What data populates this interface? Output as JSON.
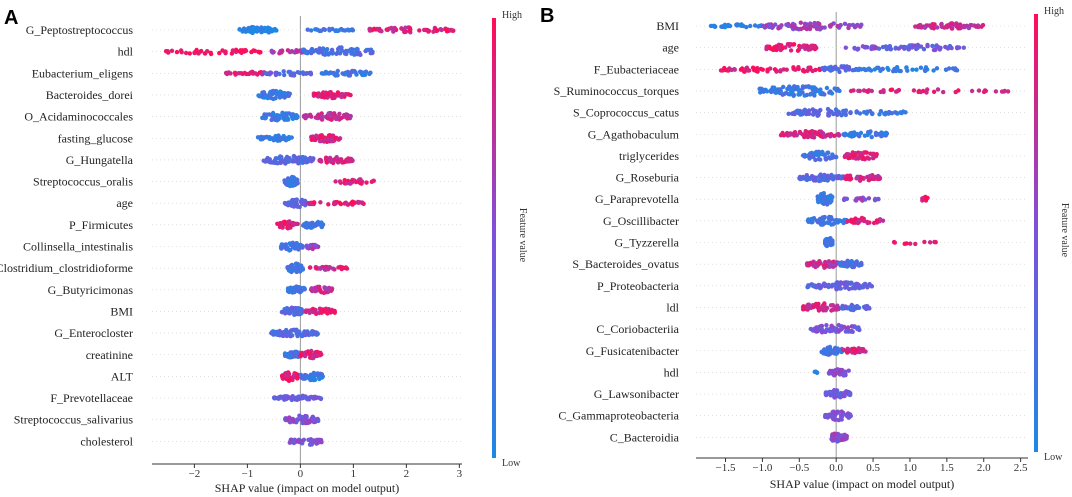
{
  "colors": {
    "low": "#1e88e5",
    "high": "#ff0d57",
    "zero_line": "#999999",
    "axis": "#333333"
  },
  "chart_data": [
    {
      "panel_label": "A",
      "type": "scatter",
      "title": "",
      "xlabel": "SHAP value (impact on model output)",
      "xlim": [
        -2.8,
        3.05
      ],
      "xticks": [
        -2,
        -1,
        0,
        1,
        2,
        3
      ],
      "colorbar": {
        "label": "Feature value",
        "high": "High",
        "low": "Low"
      },
      "features": [
        {
          "name": "G_Peptostreptococcus",
          "segments": [
            [
              -1.15,
              -0.45,
              0,
              70,
              0.4
            ],
            [
              0.1,
              1.0,
              0.15,
              25,
              0.15
            ],
            [
              1.3,
              2.9,
              0.85,
              60,
              0.35
            ]
          ]
        },
        {
          "name": "hdl",
          "segments": [
            [
              -2.55,
              -0.75,
              0.95,
              45,
              0.3
            ],
            [
              -0.6,
              0.1,
              0.7,
              25,
              0.25
            ],
            [
              0.05,
              1.45,
              0.25,
              70,
              0.55
            ]
          ]
        },
        {
          "name": "Eubacterium_eligens",
          "segments": [
            [
              -1.45,
              -0.55,
              0.85,
              35,
              0.2
            ],
            [
              -0.65,
              0.25,
              0.35,
              30,
              0.3
            ],
            [
              0.4,
              1.35,
              0.15,
              45,
              0.35
            ]
          ]
        },
        {
          "name": "Bacteroides_dorei",
          "segments": [
            [
              -0.8,
              -0.2,
              0.15,
              60,
              0.5
            ],
            [
              0.25,
              0.95,
              0.9,
              55,
              0.4
            ]
          ]
        },
        {
          "name": "O_Acidaminococcales",
          "segments": [
            [
              -0.75,
              -0.05,
              0.15,
              50,
              0.5
            ],
            [
              0.05,
              1.0,
              0.75,
              60,
              0.45
            ]
          ]
        },
        {
          "name": "fasting_glucose",
          "segments": [
            [
              -0.8,
              -0.15,
              0.15,
              45,
              0.35
            ],
            [
              0.2,
              0.75,
              0.85,
              60,
              0.45
            ]
          ]
        },
        {
          "name": "G_Hungatella",
          "segments": [
            [
              -0.7,
              0.25,
              0.3,
              90,
              0.5
            ],
            [
              0.3,
              1.0,
              0.85,
              50,
              0.4
            ]
          ]
        },
        {
          "name": "Streptococcus_oralis",
          "segments": [
            [
              -0.3,
              -0.05,
              0.2,
              45,
              0.6
            ],
            [
              0.65,
              1.4,
              0.9,
              30,
              0.3
            ]
          ]
        },
        {
          "name": "age",
          "segments": [
            [
              -0.3,
              0.15,
              0.35,
              40,
              0.5
            ],
            [
              0.15,
              1.25,
              0.9,
              35,
              0.25
            ]
          ]
        },
        {
          "name": "P_Firmicutes",
          "segments": [
            [
              -0.45,
              -0.05,
              0.9,
              40,
              0.45
            ],
            [
              0.05,
              0.45,
              0.15,
              40,
              0.5
            ]
          ]
        },
        {
          "name": "Collinsella_intestinalis",
          "segments": [
            [
              -0.4,
              0.05,
              0.2,
              50,
              0.5
            ],
            [
              0.1,
              0.35,
              0.6,
              20,
              0.3
            ]
          ]
        },
        {
          "name": "Clostridium_clostridioforme",
          "segments": [
            [
              -0.25,
              0.05,
              0.2,
              40,
              0.6
            ],
            [
              0.15,
              0.9,
              0.8,
              30,
              0.2
            ]
          ]
        },
        {
          "name": "G_Butyricimonas",
          "segments": [
            [
              -0.25,
              0.1,
              0.2,
              40,
              0.5
            ],
            [
              0.2,
              0.6,
              0.75,
              30,
              0.4
            ]
          ]
        },
        {
          "name": "BMI",
          "segments": [
            [
              -0.35,
              0.05,
              0.3,
              45,
              0.55
            ],
            [
              0.1,
              0.65,
              0.85,
              40,
              0.4
            ]
          ]
        },
        {
          "name": "G_Enterocloster",
          "segments": [
            [
              -0.55,
              0.35,
              0.3,
              80,
              0.45
            ]
          ]
        },
        {
          "name": "creatinine",
          "segments": [
            [
              -0.3,
              0.05,
              0.2,
              35,
              0.4
            ],
            [
              0.0,
              0.4,
              0.85,
              40,
              0.5
            ]
          ]
        },
        {
          "name": "ALT",
          "segments": [
            [
              -0.35,
              -0.05,
              0.9,
              45,
              0.6
            ],
            [
              0.0,
              0.45,
              0.15,
              40,
              0.5
            ]
          ]
        },
        {
          "name": "F_Prevotellaceae",
          "segments": [
            [
              -0.5,
              0.4,
              0.4,
              60,
              0.3
            ]
          ]
        },
        {
          "name": "Streptococcus_salivarius",
          "segments": [
            [
              -0.3,
              0.35,
              0.5,
              60,
              0.55
            ]
          ]
        },
        {
          "name": "cholesterol",
          "segments": [
            [
              -0.2,
              0.4,
              0.5,
              45,
              0.45
            ]
          ]
        }
      ]
    },
    {
      "panel_label": "B",
      "type": "scatter",
      "title": "",
      "xlabel": "SHAP value (impact on model output)",
      "xlim": [
        -1.9,
        2.6
      ],
      "xticks": [
        -1.5,
        -1.0,
        -0.5,
        0.0,
        0.5,
        1.0,
        1.5,
        2.0,
        2.5
      ],
      "colorbar": {
        "label": "Feature value",
        "high": "High",
        "low": "Low"
      },
      "features": [
        {
          "name": "BMI",
          "segments": [
            [
              -1.7,
              -1.0,
              0.05,
              30,
              0.2
            ],
            [
              -1.0,
              0.35,
              0.6,
              80,
              0.45
            ],
            [
              1.05,
              2.0,
              0.75,
              55,
              0.35
            ]
          ]
        },
        {
          "name": "age",
          "segments": [
            [
              -0.95,
              -0.25,
              0.9,
              60,
              0.45
            ],
            [
              0.1,
              0.55,
              0.55,
              20,
              0.25
            ],
            [
              0.55,
              1.75,
              0.4,
              55,
              0.35
            ]
          ]
        },
        {
          "name": "F_Eubacteriaceae",
          "segments": [
            [
              -1.6,
              -0.2,
              0.9,
              55,
              0.4
            ],
            [
              -0.2,
              0.3,
              0.3,
              40,
              0.4
            ],
            [
              0.3,
              1.7,
              0.1,
              45,
              0.3
            ]
          ]
        },
        {
          "name": "S_Ruminococcus_torques",
          "segments": [
            [
              -1.05,
              0.05,
              0.15,
              95,
              0.65
            ],
            [
              0.15,
              2.35,
              0.85,
              40,
              0.2
            ]
          ]
        },
        {
          "name": "S_Coprococcus_catus",
          "segments": [
            [
              -0.65,
              0.3,
              0.3,
              70,
              0.45
            ],
            [
              0.3,
              1.1,
              0.15,
              25,
              0.25
            ]
          ]
        },
        {
          "name": "G_Agathobaculum",
          "segments": [
            [
              -0.75,
              0.05,
              0.8,
              55,
              0.4
            ],
            [
              0.05,
              0.7,
              0.15,
              40,
              0.4
            ]
          ]
        },
        {
          "name": "triglycerides",
          "segments": [
            [
              -0.45,
              0.0,
              0.2,
              45,
              0.55
            ],
            [
              0.1,
              0.55,
              0.85,
              45,
              0.5
            ]
          ]
        },
        {
          "name": "G_Roseburia",
          "segments": [
            [
              -0.5,
              0.1,
              0.3,
              55,
              0.45
            ],
            [
              0.1,
              0.6,
              0.8,
              40,
              0.4
            ]
          ]
        },
        {
          "name": "G_Paraprevotella",
          "segments": [
            [
              -0.25,
              -0.05,
              0.15,
              40,
              0.8
            ],
            [
              0.1,
              0.6,
              0.55,
              20,
              0.2
            ],
            [
              1.15,
              1.25,
              0.95,
              6,
              0.3
            ]
          ]
        },
        {
          "name": "G_Oscillibacter",
          "segments": [
            [
              -0.4,
              0.15,
              0.2,
              55,
              0.5
            ],
            [
              0.15,
              0.65,
              0.85,
              35,
              0.4
            ]
          ]
        },
        {
          "name": "G_Tyzzerella",
          "segments": [
            [
              -0.15,
              -0.05,
              0.15,
              30,
              0.7
            ],
            [
              0.75,
              1.35,
              0.9,
              10,
              0.2
            ]
          ]
        },
        {
          "name": "S_Bacteroides_ovatus",
          "segments": [
            [
              -0.4,
              0.05,
              0.75,
              45,
              0.45
            ],
            [
              0.05,
              0.35,
              0.2,
              40,
              0.5
            ]
          ]
        },
        {
          "name": "P_Proteobacteria",
          "segments": [
            [
              -0.4,
              0.5,
              0.35,
              80,
              0.45
            ]
          ]
        },
        {
          "name": "ldl",
          "segments": [
            [
              -0.45,
              0.05,
              0.8,
              50,
              0.55
            ],
            [
              0.05,
              0.45,
              0.3,
              35,
              0.35
            ]
          ]
        },
        {
          "name": "C_Coriobacteriia",
          "segments": [
            [
              -0.35,
              0.35,
              0.45,
              70,
              0.55
            ]
          ]
        },
        {
          "name": "G_Fusicatenibacter",
          "segments": [
            [
              -0.2,
              0.1,
              0.2,
              45,
              0.6
            ],
            [
              0.1,
              0.4,
              0.85,
              30,
              0.35
            ]
          ]
        },
        {
          "name": "hdl",
          "segments": [
            [
              -0.3,
              -0.25,
              0.1,
              4,
              0.2
            ],
            [
              -0.1,
              0.2,
              0.5,
              40,
              0.45
            ]
          ]
        },
        {
          "name": "G_Lawsonibacter",
          "segments": [
            [
              -0.15,
              0.2,
              0.4,
              45,
              0.5
            ]
          ]
        },
        {
          "name": "C_Gammaproteobacteria",
          "segments": [
            [
              -0.15,
              0.2,
              0.45,
              45,
              0.55
            ]
          ]
        },
        {
          "name": "C_Bacteroidia",
          "segments": [
            [
              -0.1,
              0.15,
              0.55,
              35,
              0.55
            ]
          ]
        }
      ]
    }
  ]
}
